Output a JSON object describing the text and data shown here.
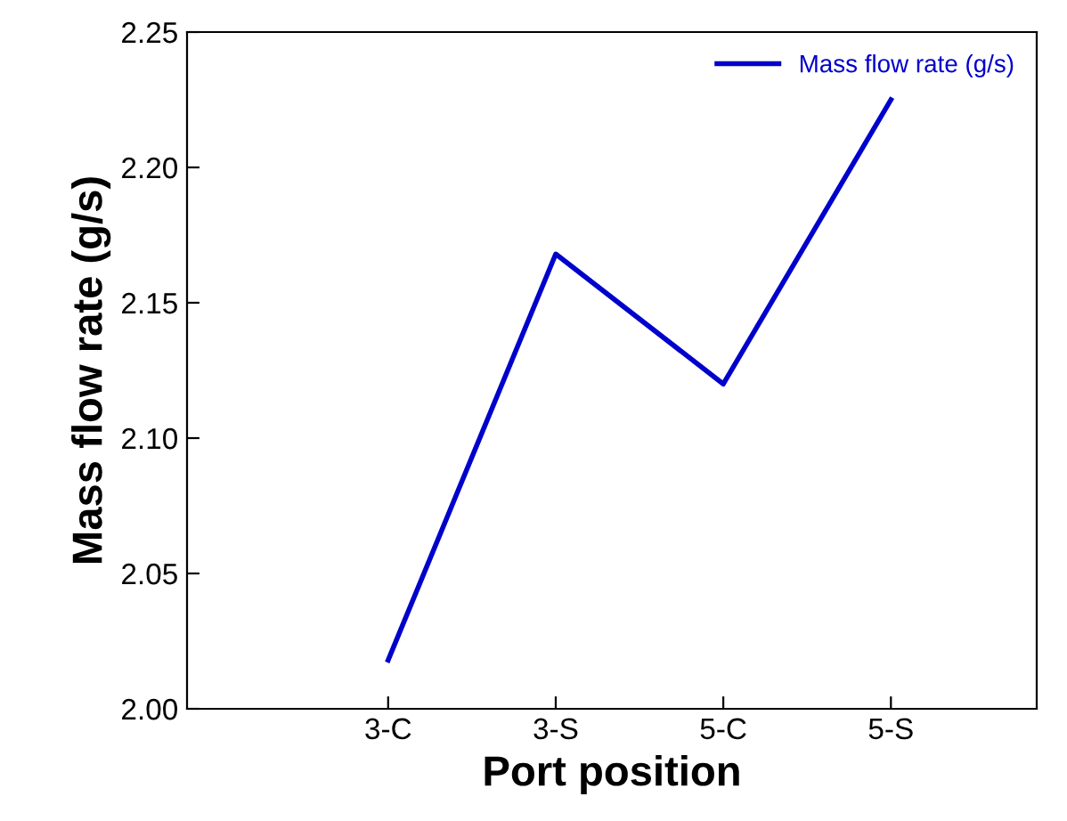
{
  "chart_data": {
    "type": "line",
    "xlabel": "Port position",
    "ylabel": "Mass flow rate (g/s)",
    "categories": [
      "3-C",
      "3-S",
      "5-C",
      "5-S"
    ],
    "series": [
      {
        "name": "Mass flow rate (g/s)",
        "color": "#0000cc",
        "values": [
          2.018,
          2.168,
          2.12,
          2.225
        ]
      }
    ],
    "ylim": [
      2.0,
      2.25
    ],
    "yticks": [
      {
        "value": 2.0,
        "label": "2.00"
      },
      {
        "value": 2.05,
        "label": "2.05"
      },
      {
        "value": 2.1,
        "label": "2.10"
      },
      {
        "value": 2.15,
        "label": "2.15"
      },
      {
        "value": 2.2,
        "label": "2.20"
      },
      {
        "value": 2.25,
        "label": "2.25"
      }
    ],
    "legend": "top right",
    "grid": false
  }
}
